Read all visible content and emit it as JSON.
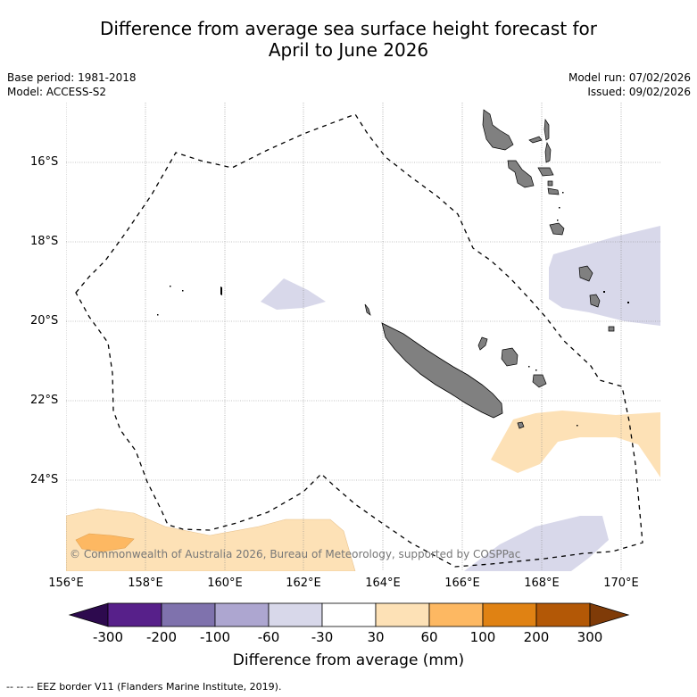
{
  "title_line1": "Difference from average sea surface height forecast for",
  "title_line2": "April to June 2026",
  "base_period": "Base period: 1981-2018",
  "model": "Model: ACCESS-S2",
  "model_run": "Model run: 07/02/2026",
  "issued": "Issued: 09/02/2026",
  "lat_labels": [
    "16°S",
    "18°S",
    "20°S",
    "22°S",
    "24°S"
  ],
  "lon_labels": [
    "156°E",
    "158°E",
    "160°E",
    "162°E",
    "164°E",
    "166°E",
    "168°E",
    "170°E"
  ],
  "copyright": "© Commonwealth of Australia 2026, Bureau of Meteorology, supported by COSPPac",
  "colorbar": {
    "title": "Difference from average (mm)",
    "ticks": [
      "-300",
      "-200",
      "-100",
      "-60",
      "-30",
      "30",
      "60",
      "100",
      "200",
      "300"
    ],
    "colors": [
      "#2d0a4e",
      "#57208a",
      "#7f72ad",
      "#ada6d0",
      "#d8d8ea",
      "#ffffff",
      "#fde1b6",
      "#fdb862",
      "#e08213",
      "#b35806",
      "#7f3b08"
    ]
  },
  "footnote": "-- -- -- EEZ border V11 (Flanders Marine Institute, 2019).",
  "colors": {
    "land": "#808080",
    "grid": "#888888"
  }
}
